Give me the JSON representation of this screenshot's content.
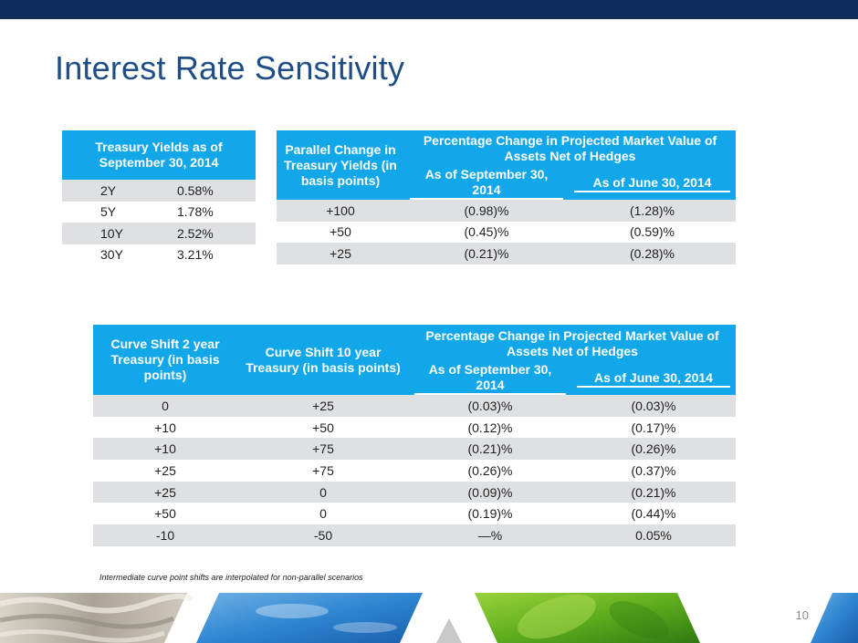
{
  "slide": {
    "title": "Interest Rate Sensitivity",
    "footnote": "Intermediate curve point shifts are interpolated for non-parallel scenarios",
    "page_number": "10"
  },
  "treasury": {
    "header": "Treasury Yields as of September 30, 2014",
    "rows": [
      {
        "term": "2Y",
        "yield": "0.58%"
      },
      {
        "term": "5Y",
        "yield": "1.78%"
      },
      {
        "term": "10Y",
        "yield": "2.52%"
      },
      {
        "term": "30Y",
        "yield": "3.21%"
      }
    ]
  },
  "parallel": {
    "col1_header": "Parallel Change in Treasury Yields (in basis points)",
    "group_header": "Percentage Change in Projected Market Value of Assets Net of Hedges",
    "col2_header": "As of September 30, 2014",
    "col3_header": "As of June 30, 2014",
    "rows": [
      {
        "change": "+100",
        "sep": "(0.98)%",
        "jun": "(1.28)%"
      },
      {
        "change": "+50",
        "sep": "(0.45)%",
        "jun": "(0.59)%"
      },
      {
        "change": "+25",
        "sep": "(0.21)%",
        "jun": "(0.28)%"
      }
    ]
  },
  "curve": {
    "col1_header": "Curve Shift 2 year Treasury (in basis points)",
    "col2_header": "Curve Shift 10 year Treasury (in basis points)",
    "group_header": "Percentage Change in Projected Market Value of Assets Net of Hedges",
    "col3_header": "As of September 30, 2014",
    "col4_header": "As of June 30, 2014",
    "rows": [
      {
        "y2": "0",
        "y10": "+25",
        "sep": "(0.03)%",
        "jun": "(0.03)%"
      },
      {
        "y2": "+10",
        "y10": "+50",
        "sep": "(0.12)%",
        "jun": "(0.17)%"
      },
      {
        "y2": "+10",
        "y10": "+75",
        "sep": "(0.21)%",
        "jun": "(0.26)%"
      },
      {
        "y2": "+25",
        "y10": "+75",
        "sep": "(0.26)%",
        "jun": "(0.37)%"
      },
      {
        "y2": "+25",
        "y10": "0",
        "sep": "(0.09)%",
        "jun": "(0.21)%"
      },
      {
        "y2": "+50",
        "y10": "0",
        "sep": "(0.19)%",
        "jun": "(0.44)%"
      },
      {
        "y2": "-10",
        "y10": "-50",
        "sep": "—%",
        "jun": "0.05%"
      }
    ]
  },
  "colors": {
    "top_bar": "#0e2d5e",
    "title": "#1f4e86",
    "header_fill": "#11a7e8",
    "alt_row": "#dfe0e2"
  }
}
